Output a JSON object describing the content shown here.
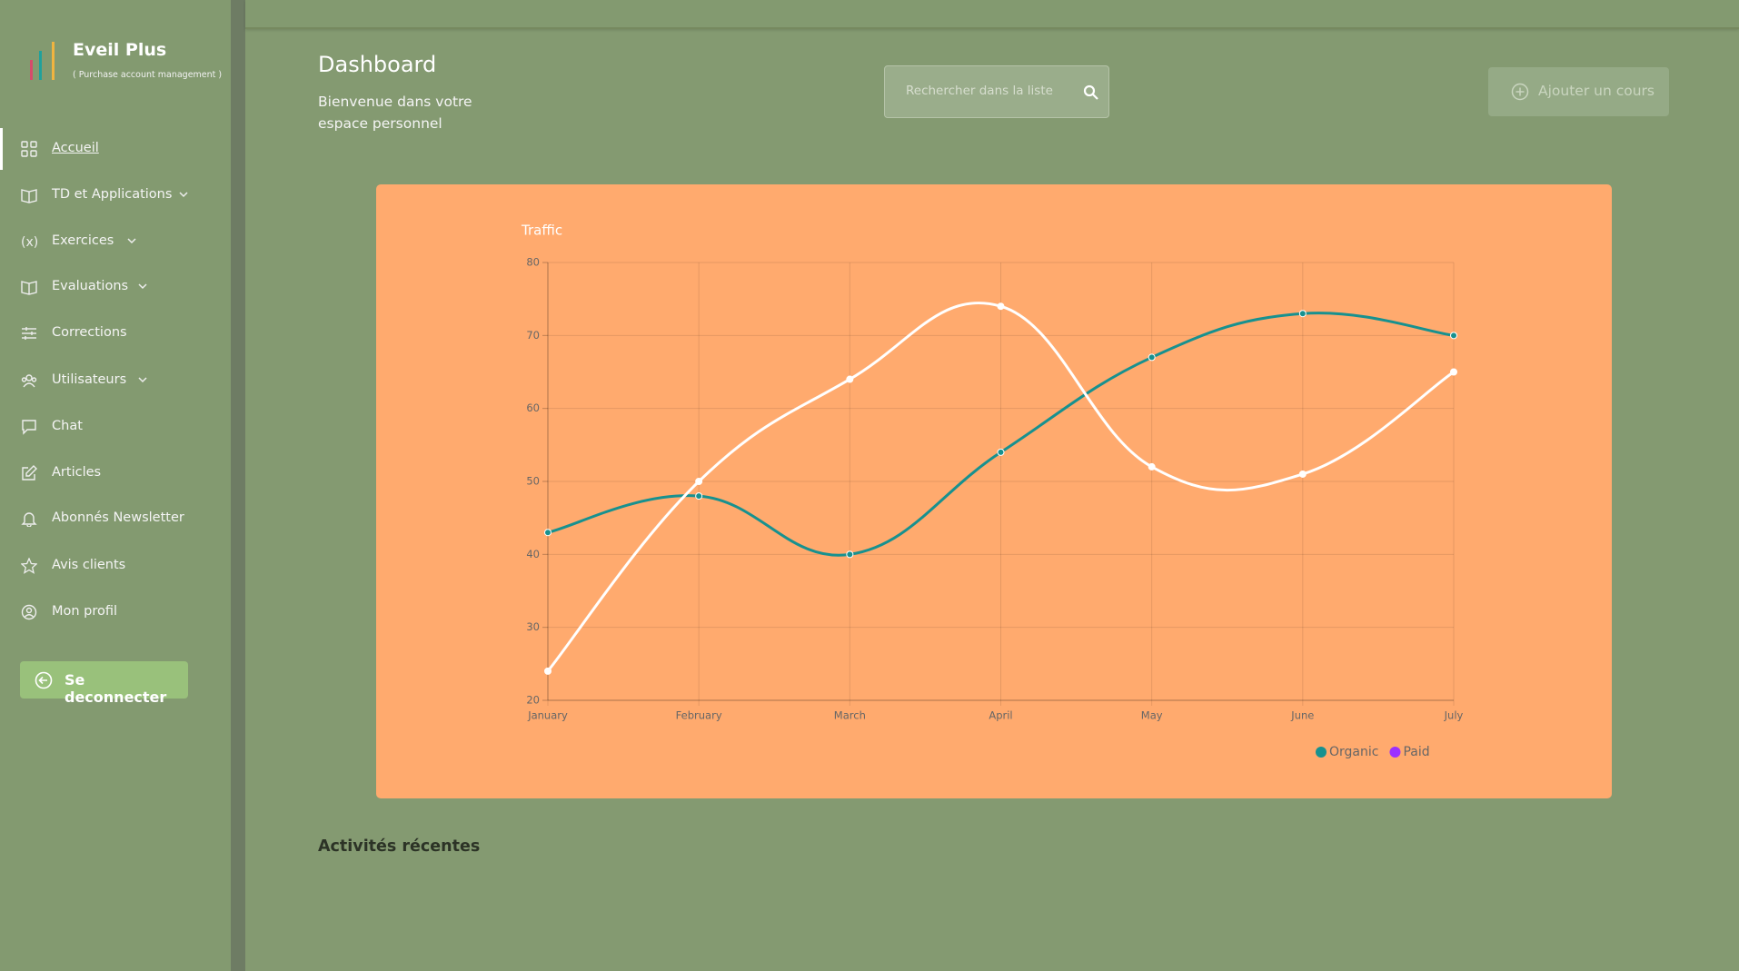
{
  "sidebar": {
    "brand": "Eveil Plus",
    "tagline": "( Purchase account management )",
    "menu": [
      "Accueil",
      "TD et Applications",
      "Exercices",
      "Evaluations",
      "Corrections",
      "Utilisateurs",
      "Chat",
      "Articles",
      "Abonnés Newsletter",
      "Avis clients",
      "Mon profil"
    ],
    "logout": "Se deconnecter"
  },
  "header": {
    "title": "Dashboard",
    "subtitle": "Bienvenue dans votre espace personnel",
    "search_placeholder": "Rechercher dans la liste",
    "add_button": "Ajouter un cours"
  },
  "chart_data": {
    "type": "line",
    "title": "Traffic",
    "categories": [
      "January",
      "February",
      "March",
      "April",
      "May",
      "June",
      "July"
    ],
    "series": [
      {
        "name": "Organic",
        "color": "#17918f",
        "legend_color": "#17918f",
        "values": [
          43,
          48,
          40,
          54,
          67,
          73,
          70
        ]
      },
      {
        "name": "Paid",
        "color": "#ffffff",
        "legend_color": "#9b30ff",
        "values": [
          24,
          50,
          64,
          74,
          52,
          51,
          65
        ]
      }
    ],
    "ylim": [
      20,
      80
    ],
    "yticks": [
      20,
      30,
      40,
      50,
      60,
      70,
      80
    ],
    "grid": true,
    "legend": "bottom"
  },
  "section_title": "Activités récentes"
}
